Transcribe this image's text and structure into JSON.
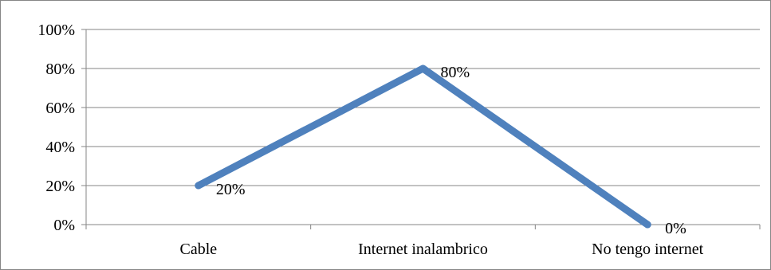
{
  "chart_data": {
    "type": "line",
    "title": "",
    "xlabel": "",
    "ylabel": "",
    "categories": [
      "Cable",
      "Internet inalambrico",
      "No tengo internet"
    ],
    "series": [
      {
        "values": [
          0.2,
          0.8,
          0.0
        ],
        "data_labels": [
          "20%",
          "80%",
          "0%"
        ],
        "color": "#4f81bd"
      }
    ],
    "ylim": [
      0,
      1
    ],
    "y_ticks": [
      0,
      0.2,
      0.4,
      0.6,
      0.8,
      1.0
    ],
    "y_tick_labels": [
      "0%",
      "20%",
      "40%",
      "60%",
      "80%",
      "100%"
    ],
    "grid": true,
    "legend": "none",
    "colors": {
      "series": "#4f81bd",
      "grid": "#868686",
      "frame": "#868686"
    }
  }
}
